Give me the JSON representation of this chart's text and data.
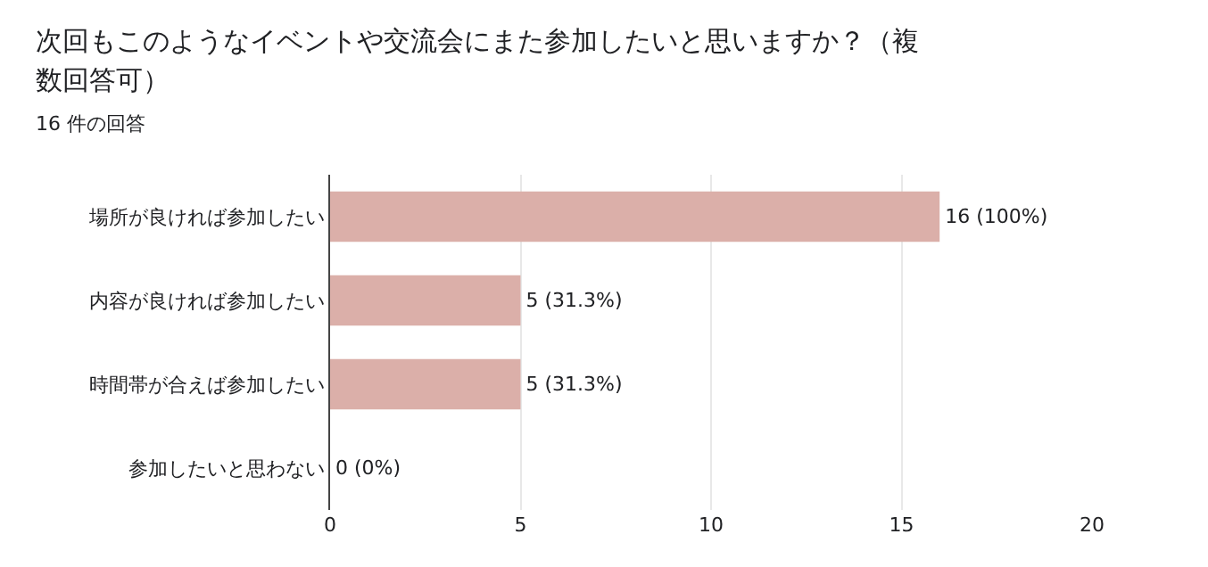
{
  "chart_data": {
    "type": "bar",
    "orientation": "horizontal",
    "title": "次回もこのようなイベントや交流会にまた参加したいと思いますか？（複数回答可）",
    "subtitle": "16 件の回答",
    "categories": [
      "場所が良ければ参加したい",
      "内容が良ければ参加したい",
      "時間帯が合えば参加したい",
      "参加したいと思わない"
    ],
    "values": [
      16,
      5,
      5,
      0
    ],
    "value_labels": [
      "16 (100%)",
      "5 (31.3%)",
      "5 (31.3%)",
      "0 (0%)"
    ],
    "color": "#dbafa9",
    "xlim": [
      0,
      20
    ],
    "xticks": [
      0,
      5,
      10,
      15,
      20
    ],
    "grid": "x"
  }
}
